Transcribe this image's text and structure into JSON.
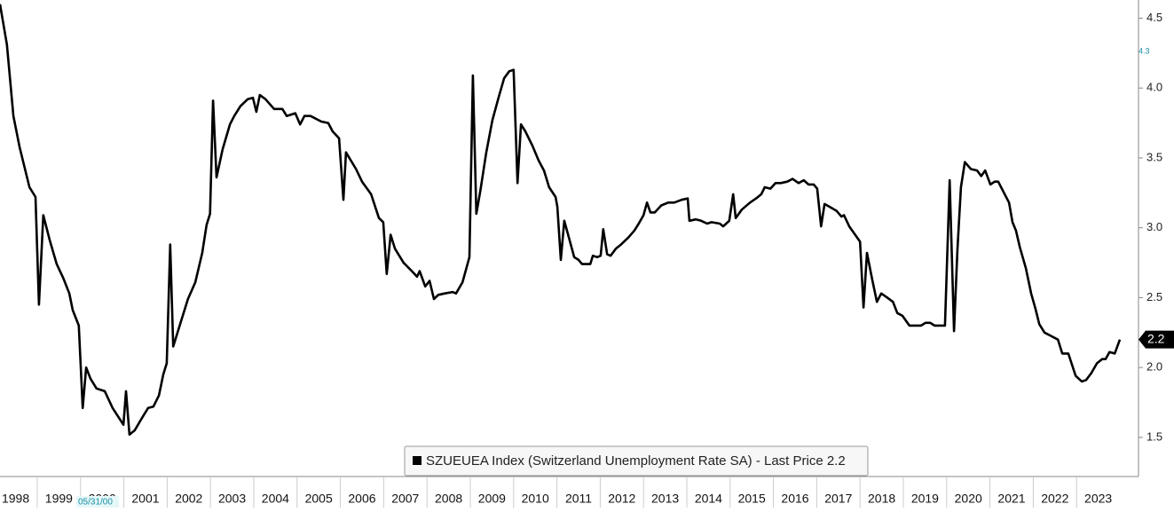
{
  "chart_data": {
    "type": "line",
    "x": [
      1998.14,
      1998.3,
      1998.45,
      1998.59,
      1998.82,
      1998.96,
      1999.04,
      1999.14,
      1999.29,
      1999.45,
      1999.6,
      1999.74,
      1999.82,
      1999.96,
      2000.05,
      2000.13,
      2000.23,
      2000.37,
      2000.56,
      2000.74,
      2000.99,
      2001.05,
      2001.13,
      2001.25,
      2001.42,
      2001.56,
      2001.68,
      2001.81,
      2001.91,
      2001.99,
      2002.07,
      2002.14,
      2002.3,
      2002.48,
      2002.65,
      2002.81,
      2002.91,
      2002.99,
      2003.06,
      2003.14,
      2003.28,
      2003.45,
      2003.55,
      2003.69,
      2003.86,
      2003.98,
      2004.06,
      2004.14,
      2004.27,
      2004.47,
      2004.66,
      2004.76,
      2004.96,
      2005.07,
      2005.17,
      2005.31,
      2005.56,
      2005.72,
      2005.82,
      2005.97,
      2006.07,
      2006.13,
      2006.36,
      2006.5,
      2006.71,
      2006.89,
      2006.99,
      2007.07,
      2007.16,
      2007.26,
      2007.46,
      2007.65,
      2007.77,
      2007.83,
      2007.96,
      2008.06,
      2008.16,
      2008.26,
      2008.41,
      2008.59,
      2008.67,
      2008.82,
      2008.98,
      2009.06,
      2009.14,
      2009.23,
      2009.37,
      2009.51,
      2009.66,
      2009.78,
      2009.9,
      2010.0,
      2010.09,
      2010.17,
      2010.27,
      2010.43,
      2010.58,
      2010.7,
      2010.82,
      2010.97,
      2011.01,
      2011.09,
      2011.17,
      2011.25,
      2011.4,
      2011.5,
      2011.58,
      2011.77,
      2011.83,
      2011.93,
      2012.01,
      2012.07,
      2012.16,
      2012.24,
      2012.36,
      2012.48,
      2012.65,
      2012.79,
      2012.89,
      2013.0,
      2013.08,
      2013.16,
      2013.26,
      2013.41,
      2013.57,
      2013.71,
      2013.88,
      2014.02,
      2014.06,
      2014.21,
      2014.33,
      2014.47,
      2014.57,
      2014.76,
      2014.84,
      2014.98,
      2015.07,
      2015.13,
      2015.27,
      2015.46,
      2015.6,
      2015.72,
      2015.8,
      2015.93,
      2016.05,
      2016.17,
      2016.32,
      2016.44,
      2016.58,
      2016.7,
      2016.81,
      2016.93,
      2017.01,
      2017.1,
      2017.18,
      2017.3,
      2017.46,
      2017.57,
      2017.63,
      2017.75,
      2017.91,
      2018.0,
      2018.08,
      2018.16,
      2018.28,
      2018.39,
      2018.49,
      2018.63,
      2018.76,
      2018.86,
      2018.98,
      2019.14,
      2019.41,
      2019.51,
      2019.62,
      2019.72,
      2019.96,
      2020.07,
      2020.17,
      2020.25,
      2020.33,
      2020.42,
      2020.56,
      2020.7,
      2020.8,
      2020.89,
      2021.01,
      2021.11,
      2021.19,
      2021.34,
      2021.44,
      2021.52,
      2021.6,
      2021.69,
      2021.83,
      2021.95,
      2022.05,
      2022.14,
      2022.26,
      2022.38,
      2022.57,
      2022.67,
      2022.81,
      2022.98,
      2023.12,
      2023.22,
      2023.34,
      2023.47,
      2023.59,
      2023.67,
      2023.76,
      2023.88,
      2024.0
    ],
    "series": [
      {
        "name": "SZUEUEA Index (Switzerland Unemployment Rate SA) - Last Price 2.2",
        "color": "#000000",
        "values": [
          4.6,
          4.31,
          3.8,
          3.58,
          3.29,
          3.22,
          2.45,
          3.09,
          2.91,
          2.74,
          2.64,
          2.53,
          2.41,
          2.3,
          1.71,
          2.0,
          1.92,
          1.85,
          1.83,
          1.71,
          1.59,
          1.83,
          1.52,
          1.55,
          1.64,
          1.71,
          1.72,
          1.8,
          1.95,
          2.03,
          2.88,
          2.15,
          2.31,
          2.49,
          2.61,
          2.82,
          3.02,
          3.1,
          3.91,
          3.36,
          3.56,
          3.74,
          3.8,
          3.87,
          3.92,
          3.93,
          3.83,
          3.95,
          3.92,
          3.85,
          3.85,
          3.8,
          3.82,
          3.74,
          3.8,
          3.8,
          3.76,
          3.75,
          3.69,
          3.64,
          3.2,
          3.54,
          3.42,
          3.33,
          3.24,
          3.07,
          3.04,
          2.67,
          2.95,
          2.85,
          2.75,
          2.69,
          2.65,
          2.69,
          2.58,
          2.62,
          2.49,
          2.52,
          2.53,
          2.54,
          2.53,
          2.61,
          2.79,
          4.09,
          3.1,
          3.26,
          3.54,
          3.77,
          3.94,
          4.07,
          4.12,
          4.13,
          3.32,
          3.74,
          3.69,
          3.59,
          3.48,
          3.41,
          3.29,
          3.22,
          3.15,
          2.77,
          3.05,
          2.96,
          2.79,
          2.77,
          2.74,
          2.74,
          2.8,
          2.79,
          2.8,
          2.99,
          2.81,
          2.8,
          2.85,
          2.88,
          2.93,
          2.98,
          3.03,
          3.09,
          3.18,
          3.11,
          3.11,
          3.16,
          3.18,
          3.18,
          3.2,
          3.21,
          3.05,
          3.06,
          3.05,
          3.03,
          3.04,
          3.03,
          3.01,
          3.05,
          3.24,
          3.07,
          3.13,
          3.18,
          3.21,
          3.24,
          3.29,
          3.28,
          3.32,
          3.32,
          3.33,
          3.35,
          3.32,
          3.34,
          3.31,
          3.31,
          3.28,
          3.01,
          3.17,
          3.15,
          3.12,
          3.08,
          3.09,
          3.01,
          2.94,
          2.9,
          2.43,
          2.82,
          2.63,
          2.47,
          2.53,
          2.5,
          2.47,
          2.39,
          2.37,
          2.3,
          2.3,
          2.32,
          2.32,
          2.3,
          2.3,
          3.34,
          2.26,
          2.85,
          3.29,
          3.47,
          3.42,
          3.41,
          3.37,
          3.41,
          3.31,
          3.33,
          3.33,
          3.24,
          3.18,
          3.04,
          2.98,
          2.86,
          2.71,
          2.53,
          2.42,
          2.31,
          2.25,
          2.23,
          2.2,
          2.1,
          2.1,
          1.94,
          1.9,
          1.91,
          1.96,
          2.03,
          2.06,
          2.06,
          2.11,
          2.1,
          2.2
        ]
      }
    ],
    "xlim": [
      1998.14,
      2024.43
    ],
    "xticks": [
      1998,
      1999,
      2000,
      2001,
      2002,
      2003,
      2004,
      2005,
      2006,
      2007,
      2008,
      2009,
      2010,
      2011,
      2012,
      2013,
      2014,
      2015,
      2016,
      2017,
      2018,
      2019,
      2020,
      2021,
      2022,
      2023
    ],
    "ylim": [
      1.22,
      4.63
    ],
    "yticks": [
      1.5,
      {
        "value": 2,
        "label": "2.0"
      },
      2.5,
      {
        "value": 3,
        "label": "3.0"
      },
      3.5,
      {
        "value": 4,
        "label": "4.0"
      },
      4.5
    ],
    "annotations": [
      {
        "value": 4.26,
        "label": "4.3"
      },
      {
        "text": "05/31/00"
      }
    ],
    "grid": false
  }
}
